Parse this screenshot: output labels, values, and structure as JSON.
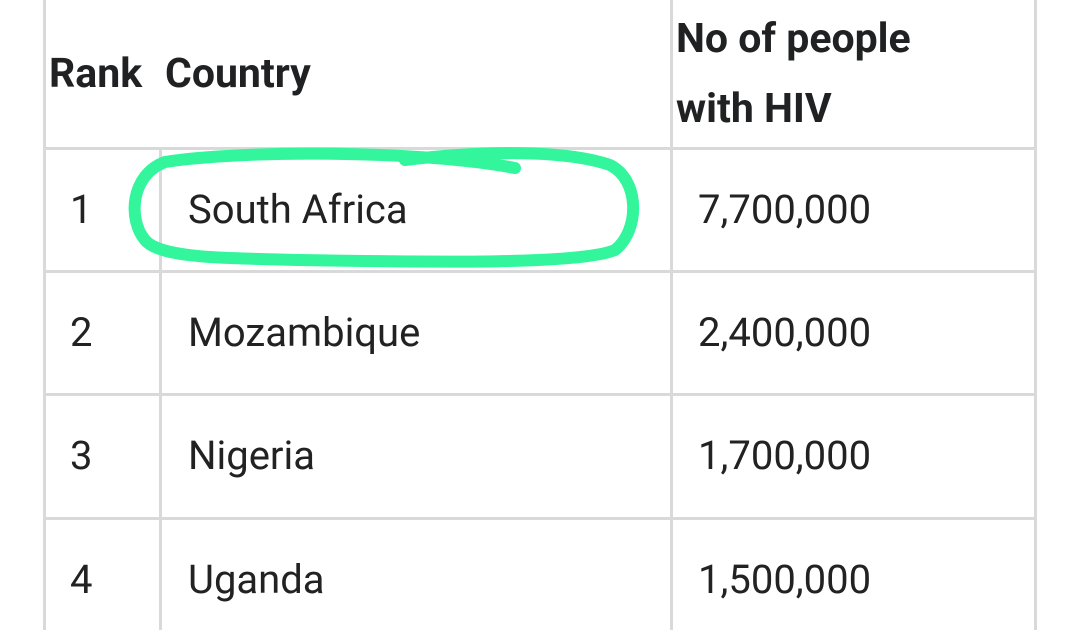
{
  "table": {
    "headers": [
      "Rank",
      "Country",
      "No of people with HIV"
    ],
    "rows": [
      [
        "1",
        "South Africa",
        "7,700,000"
      ],
      [
        "2",
        "Mozambique",
        "2,400,000"
      ],
      [
        "3",
        "Nigeria",
        "1,700,000"
      ],
      [
        "4",
        "Uganda",
        "1,500,000"
      ]
    ]
  }
}
